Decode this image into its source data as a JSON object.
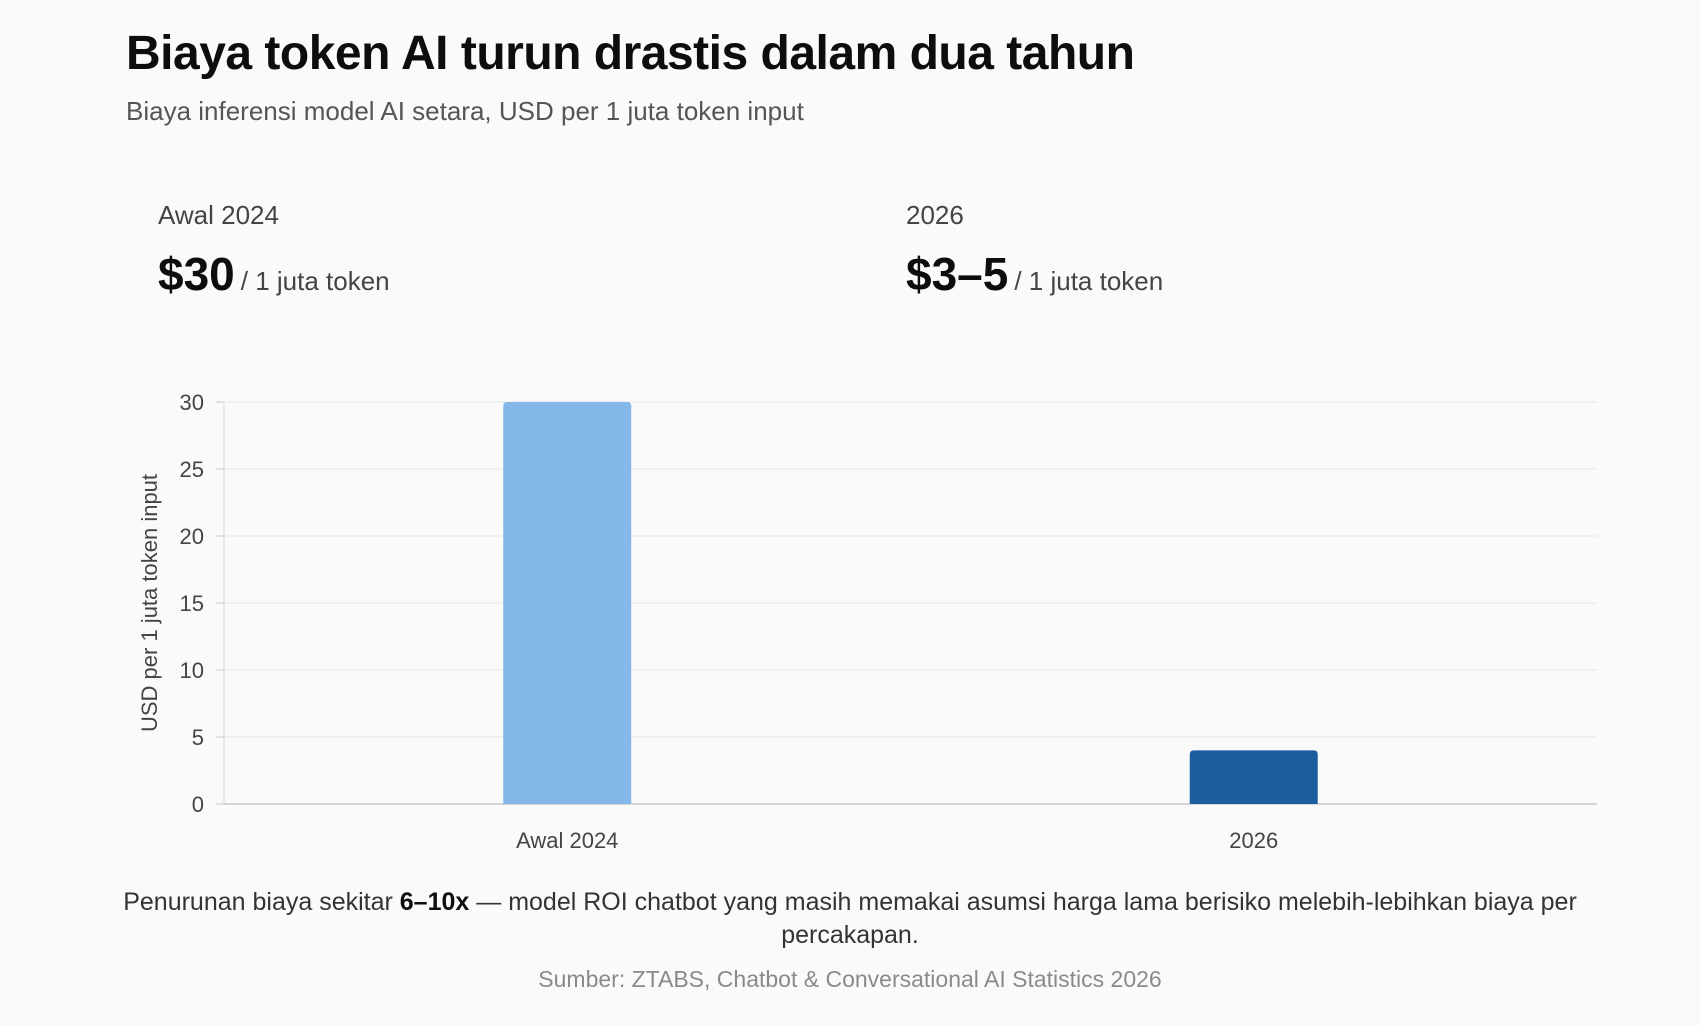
{
  "title": "Biaya token AI turun drastis dalam dua tahun",
  "subtitle": "Biaya inferensi model AI setara, USD per 1 juta token input",
  "stats": [
    {
      "label": "Awal 2024",
      "value": "$30",
      "unit": "/ 1 juta token"
    },
    {
      "label": "2026",
      "value": "$3–5",
      "unit": "/ 1 juta token"
    }
  ],
  "note": {
    "before": "Penurunan biaya sekitar ",
    "emphasis": "6–10x",
    "after": " — model ROI chatbot yang masih memakai asumsi harga lama berisiko melebih-lebihkan biaya per percakapan."
  },
  "source": "Sumber: ZTABS, Chatbot & Conversational AI Statistics 2026",
  "colors": {
    "bar_2024": "#85b8ea",
    "bar_2026": "#1a5e9e",
    "grid": "#e6e6e6"
  },
  "chart_data": {
    "type": "bar",
    "categories": [
      "Awal 2024",
      "2026"
    ],
    "values": [
      30,
      4
    ],
    "xlabel": "",
    "ylabel": "USD per 1 juta token input",
    "ylim": [
      0,
      30
    ],
    "yticks": [
      0,
      5,
      10,
      15,
      20,
      25,
      30
    ],
    "grid": true,
    "legend": "none"
  }
}
